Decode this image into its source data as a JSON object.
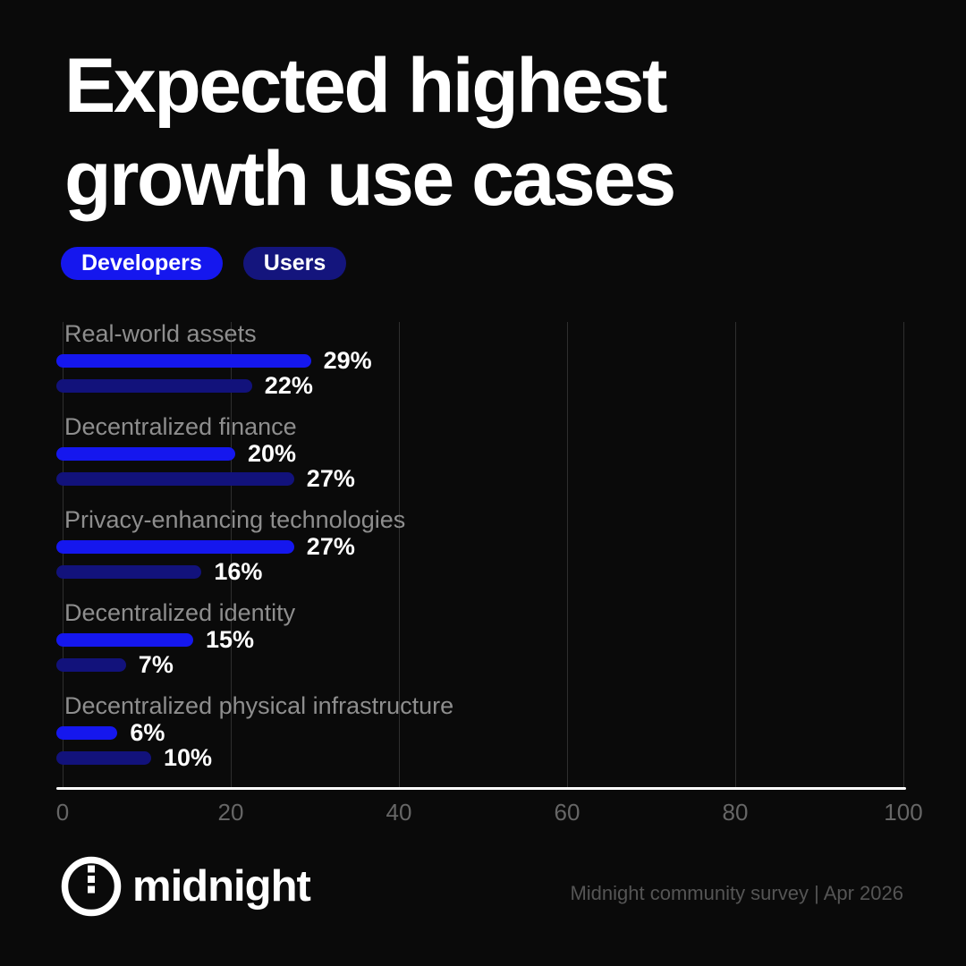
{
  "title_lines": [
    "Expected highest",
    "growth use cases"
  ],
  "legend": {
    "items": [
      {
        "label": "Developers",
        "color": "#1517ee"
      },
      {
        "label": "Users",
        "color": "#14157d"
      }
    ]
  },
  "colors": {
    "background": "#0a0a0a",
    "developers": "#1517ee",
    "users": "#12127b",
    "grid": "#2f2f2f",
    "axis": "#ffffff",
    "category_label": "#8e8e8e",
    "tick_label": "#666666",
    "value_label": "#ffffff"
  },
  "chart_data": {
    "type": "bar",
    "orientation": "horizontal",
    "title": "Expected highest growth use cases",
    "categories": [
      "Real-world assets",
      "Decentralized finance",
      "Privacy-enhancing technologies",
      "Decentralized identity",
      "Decentralized physical infrastructure"
    ],
    "series": [
      {
        "name": "Developers",
        "color": "#1517ee",
        "values": [
          29,
          20,
          27,
          15,
          6
        ]
      },
      {
        "name": "Users",
        "color": "#12127b",
        "values": [
          22,
          27,
          16,
          7,
          10
        ]
      }
    ],
    "value_suffix": "%",
    "xlim": [
      0,
      100
    ],
    "x_ticks": [
      0,
      20,
      40,
      60,
      80,
      100
    ],
    "grid": "vertical",
    "legend_position": "top-left"
  },
  "footer": {
    "brand": "midnight",
    "source": "Midnight community survey | Apr 2026"
  }
}
